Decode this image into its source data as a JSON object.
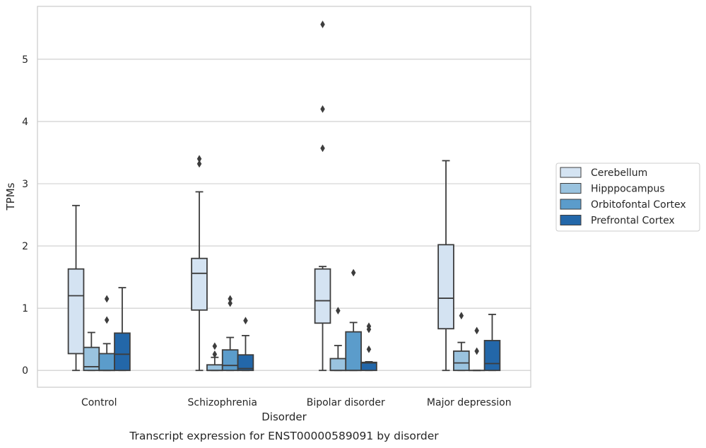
{
  "caption": "Transcript expression for ENST00000589091 by disorder",
  "chart_data": {
    "type": "box",
    "xlabel": "Disorder",
    "ylabel": "TPMs",
    "ylim": [
      -0.27,
      5.85
    ],
    "yticks": [
      0,
      1,
      2,
      3,
      4,
      5
    ],
    "grid": "horizontal",
    "legend_position": "right",
    "categories": [
      "Control",
      "Schizophrenia",
      "Bipolar disorder",
      "Major depression"
    ],
    "series": [
      {
        "name": "Cerebellum",
        "color": "#d4e3f2",
        "boxes": [
          {
            "whislo": 0.0,
            "q1": 0.27,
            "med": 1.2,
            "q3": 1.63,
            "whishi": 2.65,
            "fliers": []
          },
          {
            "whislo": 0.0,
            "q1": 0.97,
            "med": 1.56,
            "q3": 1.8,
            "whishi": 2.87,
            "fliers": [
              3.32,
              3.4
            ]
          },
          {
            "whislo": 0.0,
            "q1": 0.76,
            "med": 1.12,
            "q3": 1.63,
            "whishi": 1.67,
            "fliers": [
              3.57,
              4.2,
              5.56
            ]
          },
          {
            "whislo": 0.0,
            "q1": 0.67,
            "med": 1.16,
            "q3": 2.02,
            "whishi": 3.37,
            "fliers": []
          }
        ]
      },
      {
        "name": "Hipppocampus",
        "color": "#9ac3df",
        "boxes": [
          {
            "whislo": 0.0,
            "q1": 0.0,
            "med": 0.06,
            "q3": 0.37,
            "whishi": 0.61,
            "fliers": []
          },
          {
            "whislo": 0.0,
            "q1": 0.0,
            "med": 0.0,
            "q3": 0.09,
            "whishi": 0.21,
            "fliers": [
              0.26,
              0.39
            ]
          },
          {
            "whislo": 0.0,
            "q1": 0.0,
            "med": 0.0,
            "q3": 0.19,
            "whishi": 0.4,
            "fliers": [
              0.96
            ]
          },
          {
            "whislo": 0.0,
            "q1": 0.0,
            "med": 0.12,
            "q3": 0.31,
            "whishi": 0.45,
            "fliers": [
              0.88
            ]
          }
        ]
      },
      {
        "name": "Orbitofontal Cortex",
        "color": "#5b9ccb",
        "boxes": [
          {
            "whislo": 0.0,
            "q1": 0.0,
            "med": 0.0,
            "q3": 0.27,
            "whishi": 0.43,
            "fliers": [
              0.81,
              1.15
            ]
          },
          {
            "whislo": 0.0,
            "q1": 0.0,
            "med": 0.08,
            "q3": 0.33,
            "whishi": 0.53,
            "fliers": [
              1.08,
              1.15
            ]
          },
          {
            "whislo": 0.0,
            "q1": 0.0,
            "med": 0.0,
            "q3": 0.62,
            "whishi": 0.77,
            "fliers": [
              1.57
            ]
          },
          {
            "whislo": 0.0,
            "q1": 0.0,
            "med": 0.0,
            "q3": 0.0,
            "whishi": 0.0,
            "fliers": [
              0.31,
              0.64
            ]
          }
        ]
      },
      {
        "name": "Prefrontal Cortex",
        "color": "#2367a9",
        "boxes": [
          {
            "whislo": 0.0,
            "q1": 0.0,
            "med": 0.26,
            "q3": 0.6,
            "whishi": 1.33,
            "fliers": []
          },
          {
            "whislo": 0.0,
            "q1": 0.0,
            "med": 0.03,
            "q3": 0.25,
            "whishi": 0.56,
            "fliers": [
              0.8
            ]
          },
          {
            "whislo": 0.0,
            "q1": 0.0,
            "med": 0.12,
            "q3": 0.13,
            "whishi": 0.14,
            "fliers": [
              0.34,
              0.66,
              0.71
            ]
          },
          {
            "whislo": 0.0,
            "q1": 0.0,
            "med": 0.11,
            "q3": 0.48,
            "whishi": 0.9,
            "fliers": []
          }
        ]
      }
    ]
  }
}
